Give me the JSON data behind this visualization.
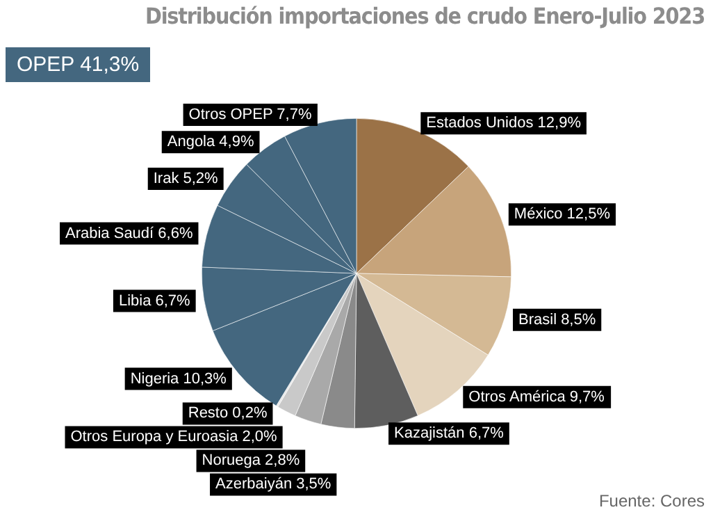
{
  "chart_data": {
    "type": "pie",
    "title": "Distribución importaciones de crudo Enero-Julio 2023",
    "categories": [
      "Estados Unidos",
      "México",
      "Brasil",
      "Otros América",
      "Kazajistán",
      "Azerbaiyán",
      "Noruega",
      "Otros Europa y Euroasia",
      "Resto",
      "Nigeria",
      "Libia",
      "Arabia Saudí",
      "Irak",
      "Angola",
      "Otros OPEP"
    ],
    "values": [
      12.9,
      12.5,
      8.5,
      9.7,
      6.7,
      3.5,
      2.8,
      2.0,
      0.2,
      10.3,
      6.7,
      6.6,
      5.2,
      4.9,
      7.7
    ],
    "value_labels": [
      "12,9%",
      "12,5%",
      "8,5%",
      "9,7%",
      "6,7%",
      "3,5%",
      "2,8%",
      "2,0%",
      "0,2%",
      "10,3%",
      "6,7%",
      "6,6%",
      "5,2%",
      "4,9%",
      "7,7%"
    ],
    "colors": [
      "#9b7247",
      "#c7a47b",
      "#d4b994",
      "#e4d4bd",
      "#5e5e5e",
      "#8a8a8a",
      "#a9a9a9",
      "#c9c9c9",
      "#e8e8e8",
      "#44677f",
      "#44677f",
      "#44677f",
      "#44677f",
      "#44677f",
      "#44677f"
    ],
    "annotations": [
      "OPEP 41,3%",
      "Fuente: Cores"
    ],
    "legend": false
  }
}
